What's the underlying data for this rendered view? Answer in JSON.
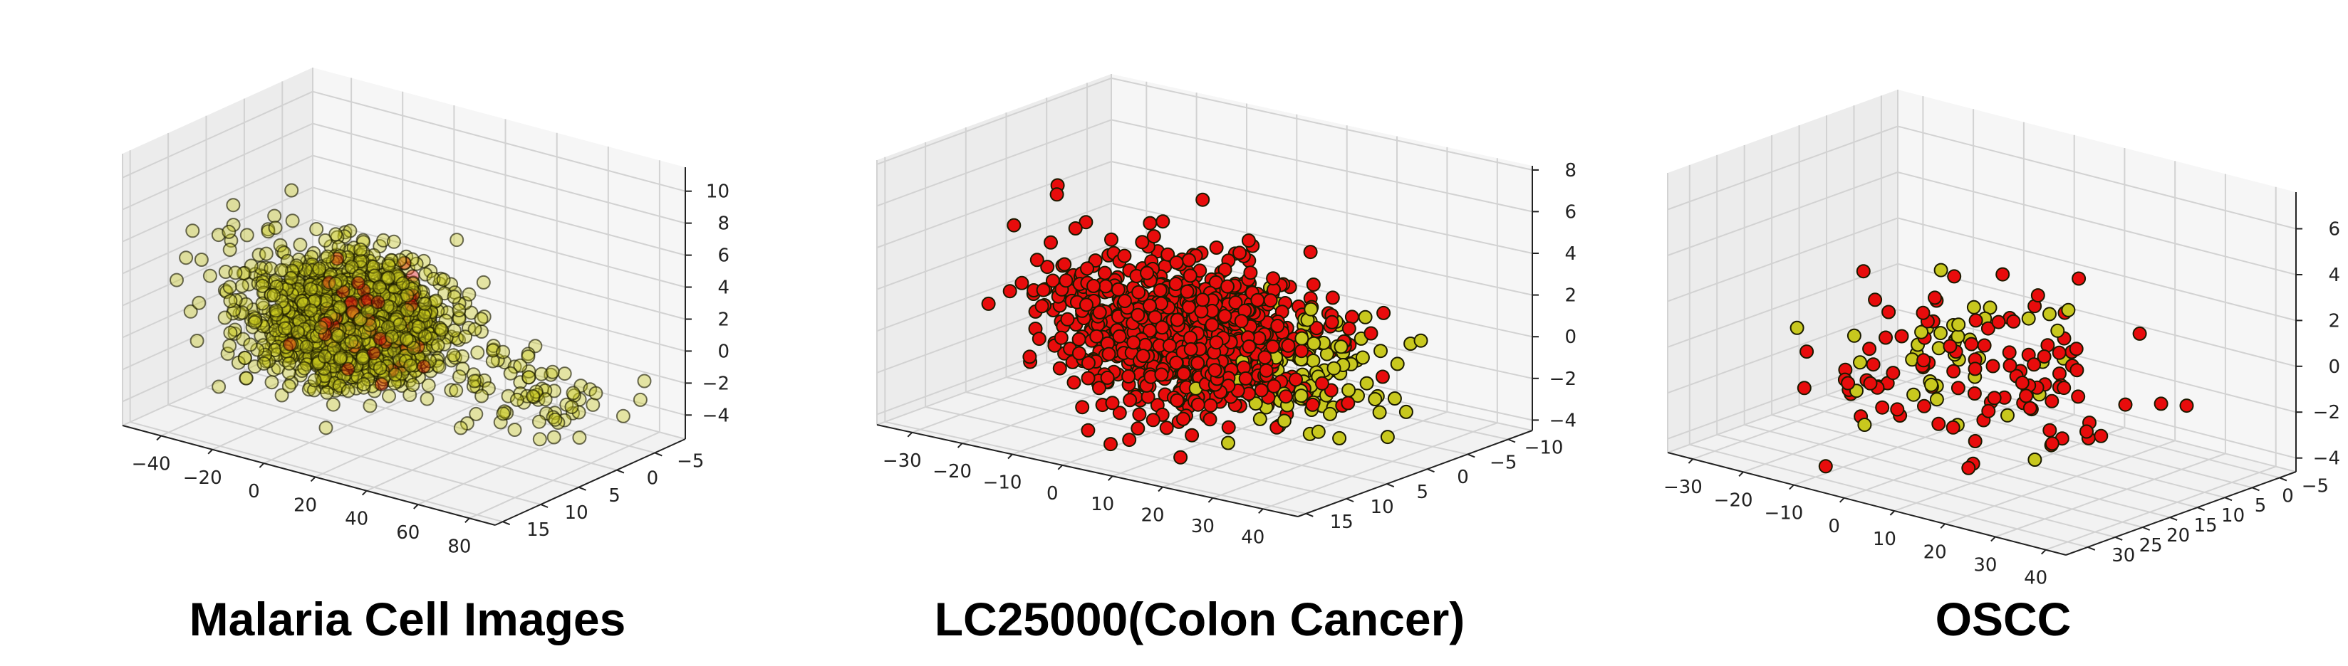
{
  "colors": {
    "class_a": "#c8c81e",
    "class_b": "#e80c0c",
    "edge": "#1a1a00"
  },
  "chart_data": [
    {
      "type": "scatter",
      "title": "Malaria Cell Images",
      "xlim": [
        -55,
        90
      ],
      "ylim": [
        -9,
        16
      ],
      "zlim": [
        -5.5,
        11.5
      ],
      "xticks": [
        -40,
        -20,
        0,
        20,
        40,
        60,
        80
      ],
      "yticks": [
        -5,
        0,
        5,
        10,
        15
      ],
      "zticks": [
        -4,
        -2,
        0,
        2,
        4,
        6,
        8,
        10
      ],
      "alpha": 0.38,
      "series": [
        {
          "color": "class_a",
          "clusters": [
            {
              "n": 1700,
              "c": [
                -4,
                3,
                0.3
              ],
              "s": [
                14,
                3.3,
                1.6
              ]
            },
            {
              "n": 90,
              "c": [
                45,
                -2,
                -2.5
              ],
              "s": [
                20,
                3,
                1
              ]
            },
            {
              "n": 70,
              "c": [
                -20,
                6,
                3.5
              ],
              "s": [
                16,
                3,
                2
              ]
            }
          ]
        },
        {
          "color": "class_b",
          "clusters": [
            {
              "n": 60,
              "c": [
                8,
                5,
                1.5
              ],
              "s": [
                10,
                3,
                1.8
              ]
            }
          ]
        }
      ]
    },
    {
      "type": "scatter",
      "title": "LC25000(Colon Cancer)",
      "xlim": [
        -37,
        47
      ],
      "ylim": [
        -13,
        16
      ],
      "zlim": [
        -4.5,
        8.2
      ],
      "xticks": [
        -30,
        -20,
        -10,
        0,
        10,
        20,
        30,
        40
      ],
      "yticks": [
        -10,
        -5,
        0,
        5,
        10,
        15
      ],
      "zticks": [
        -4,
        -2,
        0,
        2,
        4,
        6,
        8
      ],
      "alpha": 1.0,
      "series": [
        {
          "color": "class_a",
          "clusters": [
            {
              "n": 120,
              "c": [
                20,
                -2,
                -1.5
              ],
              "s": [
                9,
                3,
                1.2
              ]
            },
            {
              "n": 3,
              "c": [
                42,
                12,
                3
              ],
              "s": [
                2,
                1,
                0.8
              ]
            }
          ]
        },
        {
          "color": "class_b",
          "clusters": [
            {
              "n": 950,
              "c": [
                2,
                2,
                0
              ],
              "s": [
                11,
                3.6,
                1.7
              ]
            },
            {
              "n": 10,
              "c": [
                -20,
                4,
                3.5
              ],
              "s": [
                6,
                3,
                1.5
              ]
            }
          ]
        }
      ]
    },
    {
      "type": "scatter",
      "title": "OSCC",
      "xlim": [
        -35,
        44
      ],
      "ylim": [
        -8,
        34
      ],
      "zlim": [
        -4.6,
        7.6
      ],
      "xticks": [
        -30,
        -20,
        -10,
        0,
        10,
        20,
        30,
        40
      ],
      "yticks": [
        -5,
        0,
        5,
        10,
        15,
        20,
        25,
        30
      ],
      "zticks": [
        -4,
        -2,
        0,
        2,
        4,
        6
      ],
      "alpha": 1.0,
      "series": [
        {
          "color": "class_a",
          "clusters": [
            {
              "n": 40,
              "c": [
                -5,
                8,
                -1
              ],
              "s": [
                9,
                7,
                1.5
              ]
            }
          ]
        },
        {
          "color": "class_b",
          "clusters": [
            {
              "n": 110,
              "c": [
                0,
                10,
                -1
              ],
              "s": [
                13,
                8,
                1.8
              ]
            }
          ]
        }
      ]
    }
  ]
}
